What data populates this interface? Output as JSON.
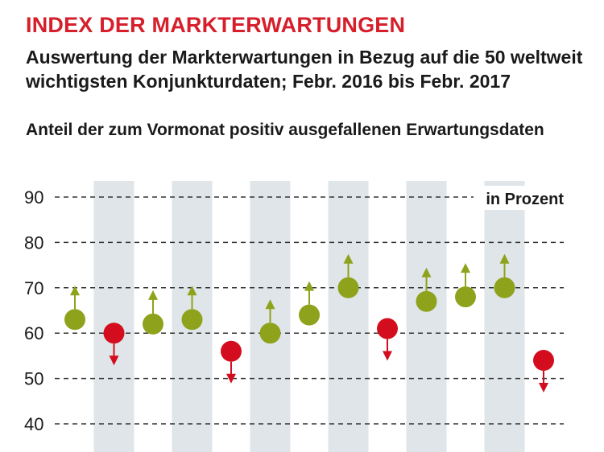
{
  "header": {
    "title": "INDEX DER MARKTERWARTUNGEN",
    "subtitle": "Auswertung der Markterwartungen in Bezug auf die 50 weltweit wichtigsten Konjunkturdaten; Febr. 2016 bis Febr. 2017",
    "chart_subtitle": "Anteil der zum Vormonat positiv ausgefallenen Erwartungsdaten"
  },
  "chart_data": {
    "type": "scatter",
    "title": "INDEX DER MARKTERWARTUNGEN",
    "subtitle": "Anteil der zum Vormonat positiv ausgefallenen Erwartungsdaten",
    "unit_label": "in Prozent",
    "ylim": [
      40,
      90
    ],
    "yticks": [
      90,
      80,
      70,
      60,
      50,
      40
    ],
    "grid": true,
    "period": "Febr. 2016 bis Febr. 2017",
    "points": [
      {
        "index": 1,
        "value": 63,
        "direction": "up"
      },
      {
        "index": 2,
        "value": 60,
        "direction": "down"
      },
      {
        "index": 3,
        "value": 62,
        "direction": "up"
      },
      {
        "index": 4,
        "value": 63,
        "direction": "up"
      },
      {
        "index": 5,
        "value": 56,
        "direction": "down"
      },
      {
        "index": 6,
        "value": 60,
        "direction": "up"
      },
      {
        "index": 7,
        "value": 64,
        "direction": "up"
      },
      {
        "index": 8,
        "value": 70,
        "direction": "up"
      },
      {
        "index": 9,
        "value": 61,
        "direction": "down"
      },
      {
        "index": 10,
        "value": 67,
        "direction": "up"
      },
      {
        "index": 11,
        "value": 68,
        "direction": "up"
      },
      {
        "index": 12,
        "value": 70,
        "direction": "up"
      },
      {
        "index": 13,
        "value": 54,
        "direction": "down"
      }
    ],
    "colors": {
      "up": "#8ea21c",
      "down": "#d40d1e",
      "band": "#dfe5e8",
      "grid": "#333333"
    }
  }
}
